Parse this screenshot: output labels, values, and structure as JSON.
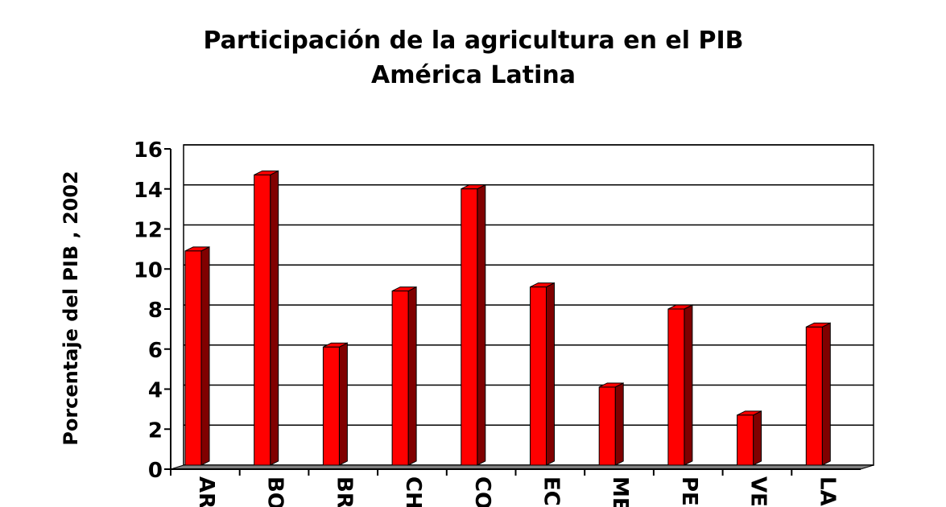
{
  "chart_data": {
    "type": "bar3d",
    "title": "Participación de la agricultura en el PIB",
    "subtitle": "América Latina",
    "y_label": "Porcentaje del PIB , 2002",
    "categories": [
      "AR",
      "BO",
      "BR",
      "CH",
      "CO",
      "EC",
      "ME",
      "PE",
      "VE",
      "LA"
    ],
    "values": [
      10.7,
      14.5,
      5.9,
      8.7,
      13.8,
      8.9,
      3.9,
      7.8,
      2.5,
      6.9
    ],
    "color": "#ff0000",
    "side_color": "#800000",
    "ylim": [
      0,
      16
    ],
    "yticks": [
      0,
      2,
      4,
      6,
      8,
      10,
      12,
      14,
      16
    ],
    "grid": true
  }
}
